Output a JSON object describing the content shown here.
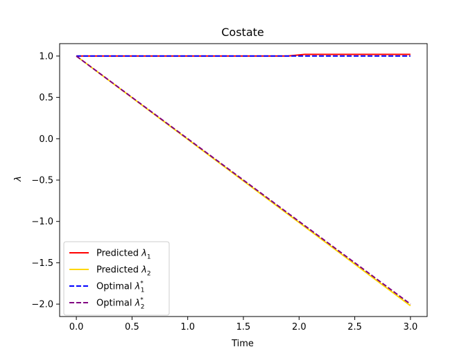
{
  "chart_data": {
    "type": "line",
    "title": "Costate",
    "xlabel": "Time",
    "ylabel": "λ",
    "xlim": [
      -0.15,
      3.15
    ],
    "ylim": [
      -2.15,
      1.15
    ],
    "xticks": [
      0.0,
      0.5,
      1.0,
      1.5,
      2.0,
      2.5,
      3.0
    ],
    "xtick_labels": [
      "0.0",
      "0.5",
      "1.0",
      "1.5",
      "2.0",
      "2.5",
      "3.0"
    ],
    "yticks": [
      1.0,
      0.5,
      0.0,
      -0.5,
      -1.0,
      -1.5,
      -2.0
    ],
    "ytick_labels": [
      "1.0",
      "0.5",
      "0.0",
      "−0.5",
      "−1.0",
      "−1.5",
      "−2.0"
    ],
    "grid": false,
    "legend_position": "lower-left",
    "series": [
      {
        "name": "Predicted λ1",
        "legend": {
          "base": "Predicted λ",
          "sub": "1",
          "sup": ""
        },
        "color": "#ff0000",
        "style": "solid",
        "x": [
          0.0,
          1.0,
          1.9,
          2.05,
          3.0
        ],
        "y": [
          1.0,
          1.0,
          1.0,
          1.02,
          1.02
        ]
      },
      {
        "name": "Predicted λ2",
        "legend": {
          "base": "Predicted λ",
          "sub": "2",
          "sup": ""
        },
        "color": "#ffd700",
        "style": "solid",
        "x": [
          0.0,
          3.0
        ],
        "y": [
          1.0,
          -2.02
        ]
      },
      {
        "name": "Optimal λ1*",
        "legend": {
          "base": "Optimal λ",
          "sub": "1",
          "sup": "*"
        },
        "color": "#0000ff",
        "style": "dashed",
        "x": [
          0.0,
          3.0
        ],
        "y": [
          1.0,
          1.0
        ]
      },
      {
        "name": "Optimal λ2*",
        "legend": {
          "base": "Optimal λ",
          "sub": "2",
          "sup": "*"
        },
        "color": "#800080",
        "style": "dashed",
        "x": [
          0.0,
          3.0
        ],
        "y": [
          1.0,
          -2.0
        ]
      }
    ]
  }
}
